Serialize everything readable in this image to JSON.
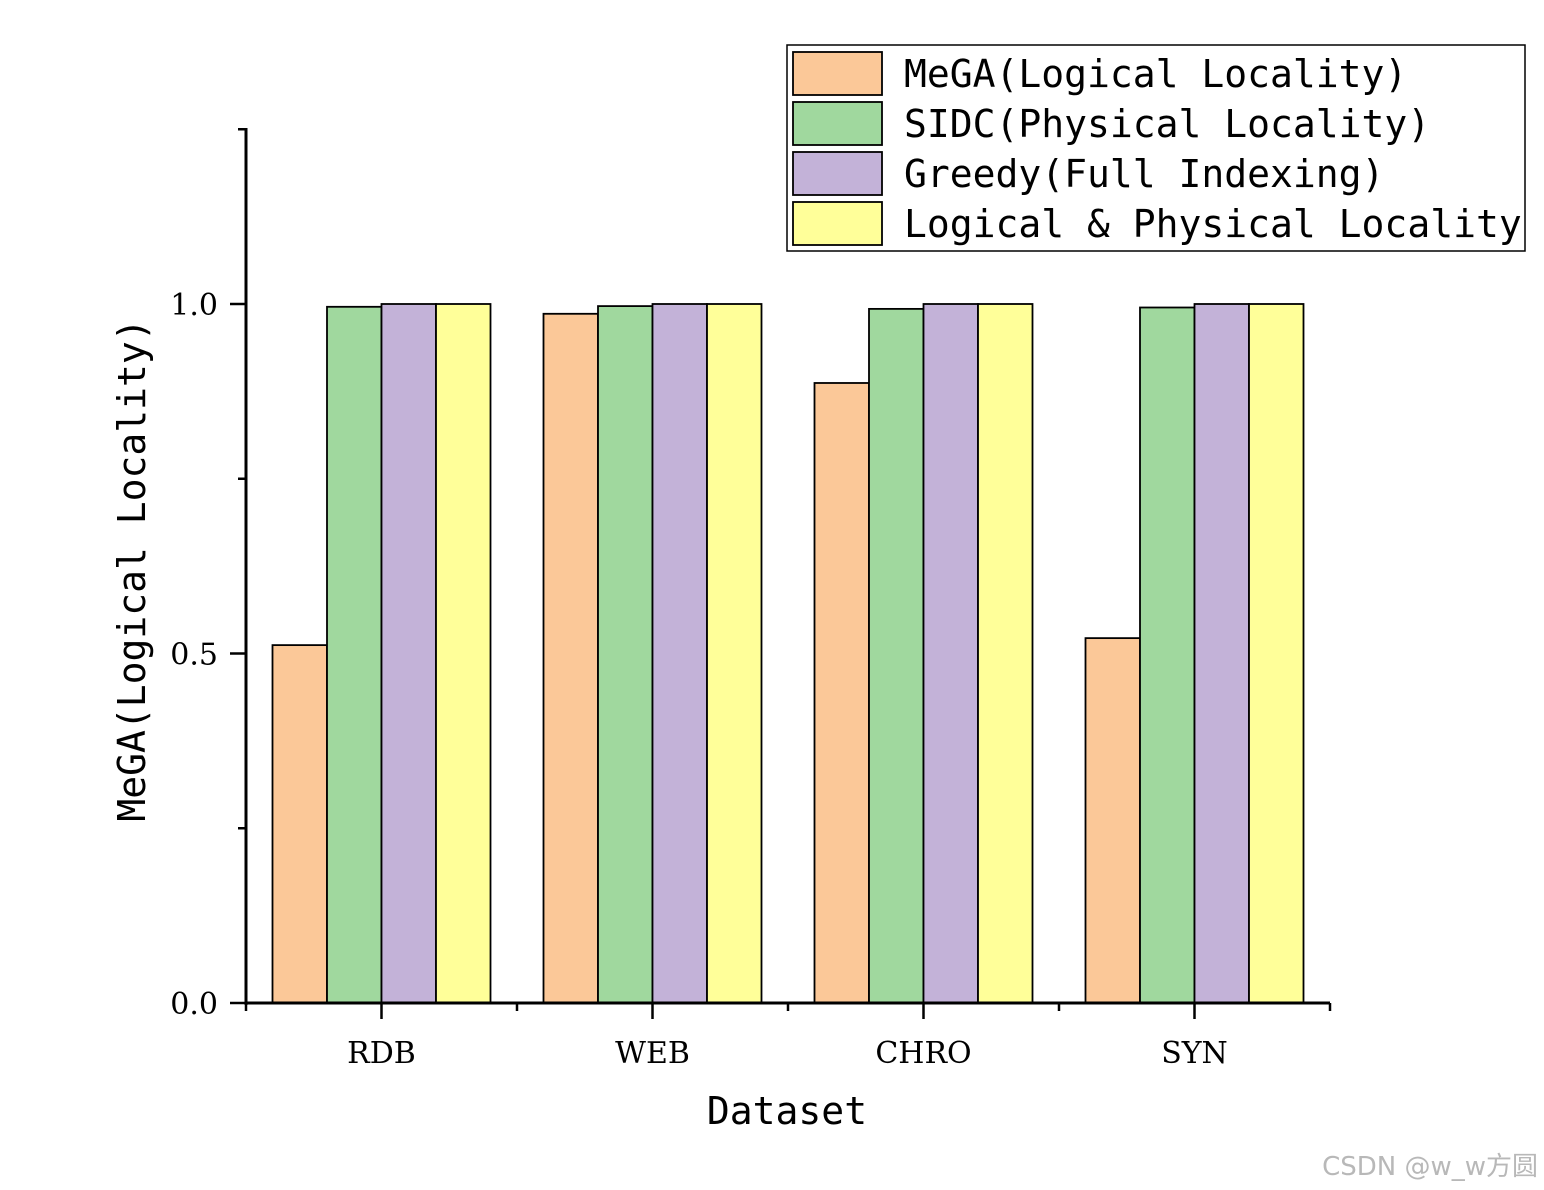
{
  "chart_data": {
    "type": "bar",
    "xlabel": "Dataset",
    "ylabel": "MeGA(Logical Locality)",
    "categories": [
      "RDB",
      "WEB",
      "CHRO",
      "SYN"
    ],
    "ylim": [
      0,
      1.25
    ],
    "yticks": [
      "0.0",
      "0.5",
      "1.0"
    ],
    "ytick_values": [
      0,
      0.5,
      1.0
    ],
    "grid": false,
    "legend_position": "top-right",
    "series": [
      {
        "name": "MeGA(Logical Locality)",
        "color": "#FBC898",
        "values": [
          0.512,
          0.986,
          0.887,
          0.522
        ]
      },
      {
        "name": "SIDC(Physical Locality)",
        "color": "#A0D89E",
        "values": [
          0.996,
          0.997,
          0.993,
          0.995
        ]
      },
      {
        "name": "Greedy(Full Indexing)",
        "color": "#C3B2D8",
        "values": [
          1.0,
          1.0,
          1.0,
          1.0
        ]
      },
      {
        "name": "Logical & Physical Locality",
        "color": "#FFFF99",
        "values": [
          1.0,
          1.0,
          1.0,
          1.0
        ]
      }
    ]
  },
  "watermark": "CSDN @w_w方圆"
}
